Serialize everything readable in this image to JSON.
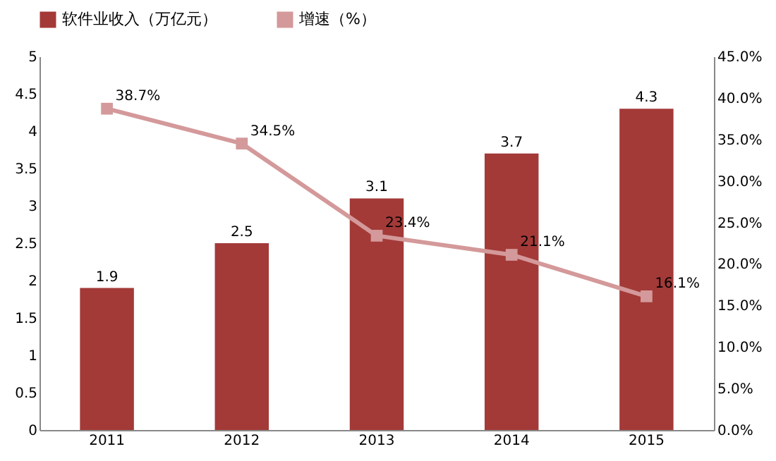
{
  "chart_data": {
    "type": "bar",
    "categories": [
      "2011",
      "2012",
      "2013",
      "2014",
      "2015"
    ],
    "series": [
      {
        "name": "软件业收入（万亿元）",
        "color": "#a33a38",
        "values": [
          1.9,
          2.5,
          3.1,
          3.7,
          4.3
        ],
        "value_labels": [
          "1.9",
          "2.5",
          "3.1",
          "3.7",
          "4.3"
        ]
      },
      {
        "name": "增速（%）",
        "type": "line",
        "axis": "y2",
        "color": "#d4999a",
        "marker": "square",
        "line_style": "solid",
        "values": [
          38.7,
          34.5,
          23.4,
          21.1,
          16.1
        ],
        "value_labels": [
          "38.7%",
          "34.5%",
          "23.4%",
          "21.1%",
          "16.1%"
        ]
      }
    ],
    "ylim": [
      0,
      5
    ],
    "yticks": [
      0,
      0.5,
      1,
      1.5,
      2,
      2.5,
      3,
      3.5,
      4,
      4.5,
      5
    ],
    "y2lim": [
      0,
      45
    ],
    "y2ticks": [
      {
        "value": 0,
        "label": "0.0%"
      },
      {
        "value": 5,
        "label": "5.0%"
      },
      {
        "value": 10,
        "label": "10.0%"
      },
      {
        "value": 15,
        "label": "15.0%"
      },
      {
        "value": 20,
        "label": "20.0%"
      },
      {
        "value": 25,
        "label": "25.0%"
      },
      {
        "value": 30,
        "label": "30.0%"
      },
      {
        "value": 35,
        "label": "35.0%"
      },
      {
        "value": 40,
        "label": "40.0%"
      },
      {
        "value": 45,
        "label": "45.0%"
      }
    ],
    "grid": false,
    "legend": "top"
  }
}
